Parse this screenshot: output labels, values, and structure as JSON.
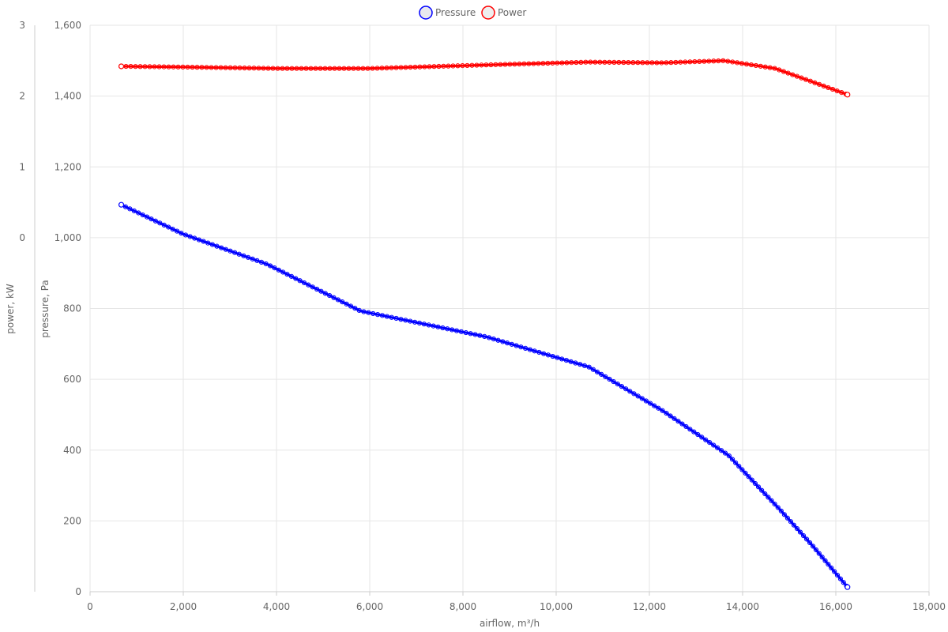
{
  "chart_data": {
    "type": "line",
    "xlabel": "airflow, m³/h",
    "y_left_outer_label": "power, kW",
    "y_left_inner_label": "pressure, Pa",
    "xlim": [
      0,
      18000
    ],
    "x_ticks": [
      "0",
      "2,000",
      "4,000",
      "6,000",
      "8,000",
      "10,000",
      "12,000",
      "14,000",
      "16,000",
      "18,000"
    ],
    "pressure_axis": {
      "min": 0,
      "max": 1600,
      "ticks": [
        "0",
        "200",
        "400",
        "600",
        "800",
        "1,000",
        "1,200",
        "1,400",
        "1,600"
      ]
    },
    "power_axis": {
      "min": -5,
      "max": 3,
      "ticks": [
        "0",
        "1",
        "2",
        "3"
      ]
    },
    "grid": true,
    "legend_position": "top-center",
    "series": [
      {
        "name": "Pressure",
        "axis": "pressure",
        "color": "#0000ff",
        "points": [
          [
            670,
            1093
          ],
          [
            2000,
            1010
          ],
          [
            3800,
            925
          ],
          [
            5800,
            793
          ],
          [
            8500,
            720
          ],
          [
            10700,
            635
          ],
          [
            12300,
            510
          ],
          [
            13700,
            385
          ],
          [
            14800,
            232
          ],
          [
            15500,
            130
          ],
          [
            16250,
            13
          ]
        ]
      },
      {
        "name": "Power",
        "axis": "power",
        "color": "#ff0000",
        "points": [
          [
            670,
            2.42
          ],
          [
            2000,
            2.41
          ],
          [
            4000,
            2.39
          ],
          [
            6000,
            2.39
          ],
          [
            8500,
            2.44
          ],
          [
            10700,
            2.48
          ],
          [
            12300,
            2.47
          ],
          [
            13600,
            2.5
          ],
          [
            14700,
            2.39
          ],
          [
            15500,
            2.2
          ],
          [
            16250,
            2.02
          ]
        ]
      }
    ]
  }
}
